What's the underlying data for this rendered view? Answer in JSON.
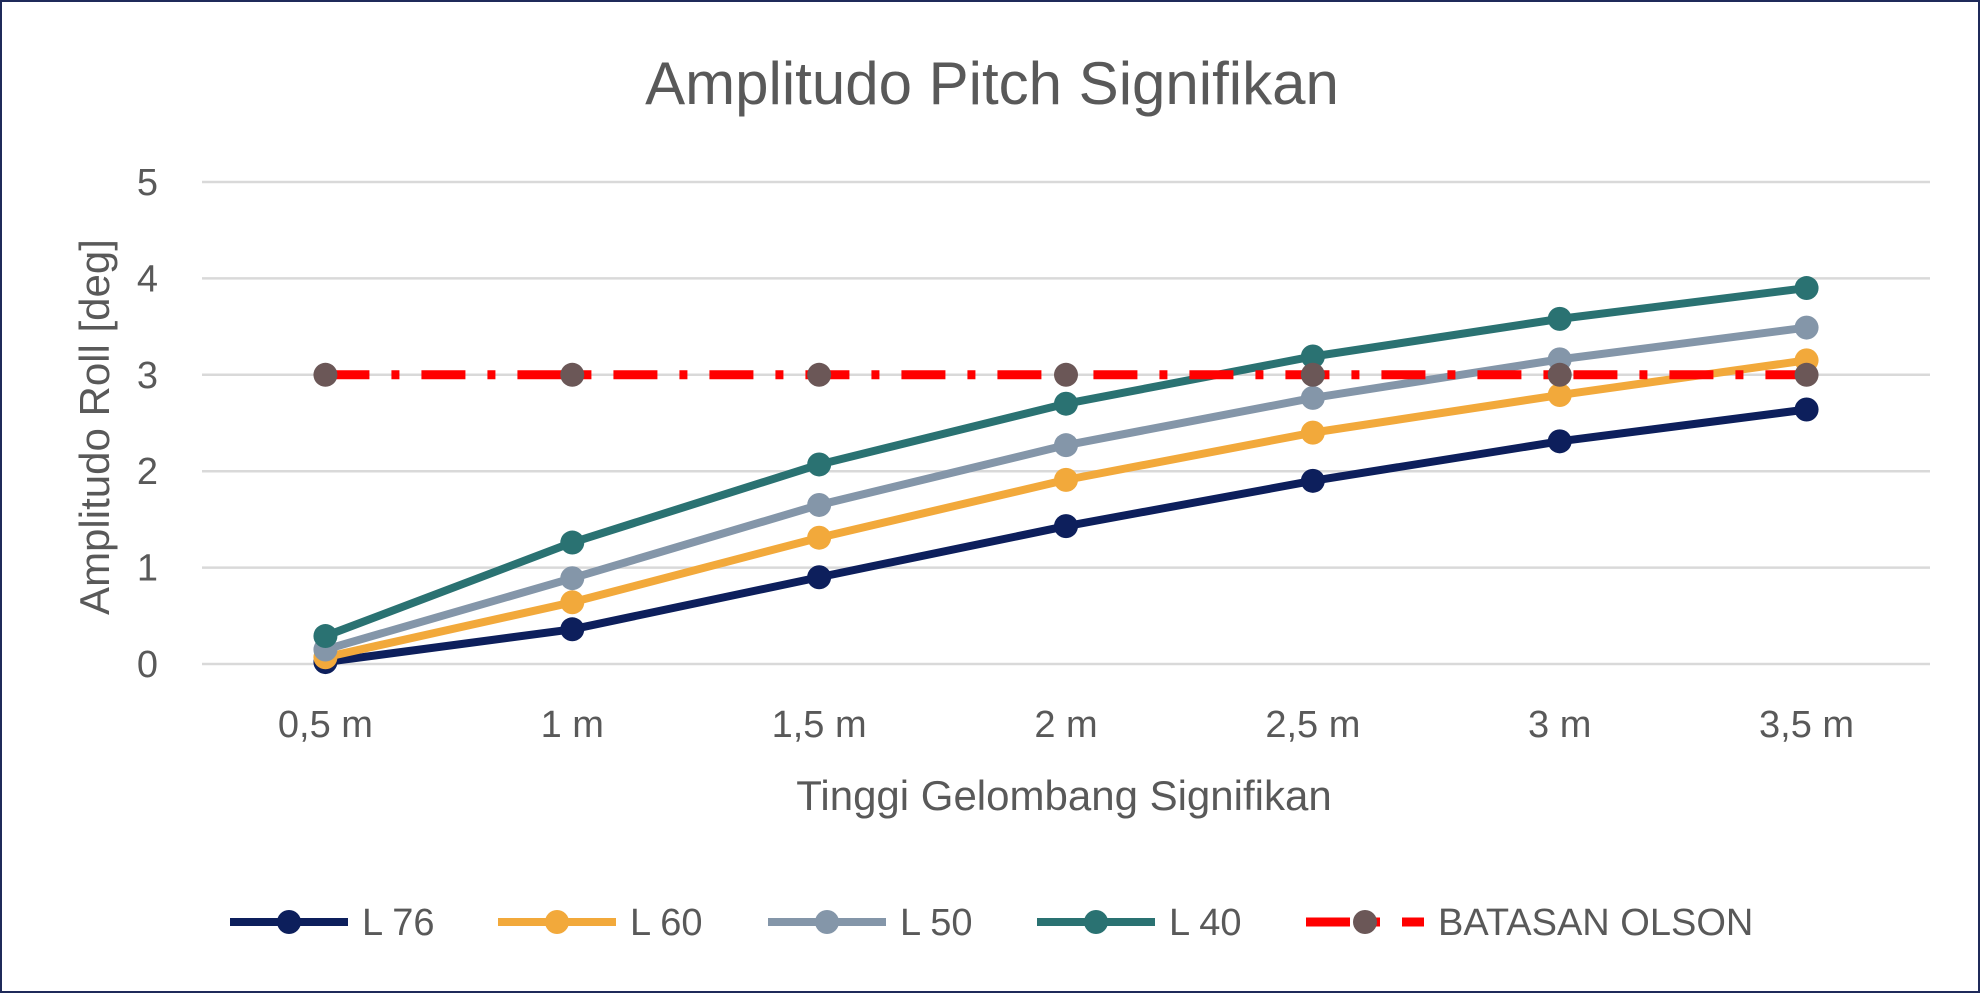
{
  "chart_data": {
    "type": "line",
    "title": "Amplitudo Pitch Signifikan",
    "xlabel": "Tinggi Gelombang Signifikan",
    "ylabel": "Amplitudo Roll [deg]",
    "categories": [
      "0,5 m",
      "1 m",
      "1,5 m",
      "2 m",
      "2,5 m",
      "3 m",
      "3,5 m"
    ],
    "ylim": [
      0,
      5
    ],
    "yticks": [
      "0",
      "1",
      "2",
      "3",
      "4",
      "5"
    ],
    "grid": true,
    "legend_position": "bottom",
    "series": [
      {
        "name": "L 76",
        "color": "#0d1f5c",
        "marker_color": "#0d1f5c",
        "dashed": false,
        "values": [
          0.02,
          0.36,
          0.9,
          1.43,
          1.9,
          2.31,
          2.64
        ]
      },
      {
        "name": "L 60",
        "color": "#f2a93b",
        "marker_color": "#f2a93b",
        "dashed": false,
        "values": [
          0.07,
          0.64,
          1.31,
          1.91,
          2.4,
          2.79,
          3.15
        ]
      },
      {
        "name": "L 50",
        "color": "#8496a9",
        "marker_color": "#8496a9",
        "dashed": false,
        "values": [
          0.15,
          0.89,
          1.65,
          2.27,
          2.76,
          3.16,
          3.49
        ]
      },
      {
        "name": "L 40",
        "color": "#2a7272",
        "marker_color": "#2a7272",
        "dashed": false,
        "values": [
          0.29,
          1.26,
          2.07,
          2.7,
          3.19,
          3.58,
          3.9
        ]
      },
      {
        "name": "BATASAN OLSON",
        "color": "#ff0000",
        "marker_color": "#6b5757",
        "dashed": true,
        "values": [
          3,
          3,
          3,
          3,
          3,
          3,
          3
        ]
      }
    ]
  }
}
